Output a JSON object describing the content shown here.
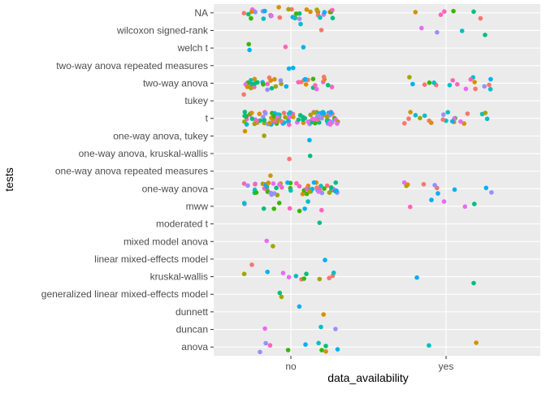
{
  "chart_data": {
    "type": "scatter",
    "title": "",
    "xlabel": "data_availability",
    "ylabel": "tests",
    "x_categories": [
      "no",
      "yes"
    ],
    "y_categories": [
      "anova",
      "duncan",
      "dunnett",
      "generalized linear mixed-effects model",
      "kruskal-wallis",
      "linear mixed-effects model",
      "mixed model anova",
      "moderated t",
      "mww",
      "one-way anova",
      "one-way anova repeated measures",
      "one-way anova, kruskal-wallis",
      "one-way anova, tukey",
      "t",
      "tukey",
      "two-way anova",
      "two-way anova repeated measures",
      "welch t",
      "wilcoxon signed-rank",
      "NA"
    ],
    "jitter": true,
    "grid": true,
    "legend": "none",
    "point_colors": [
      "#f8766d",
      "#d89000",
      "#a3a500",
      "#39b600",
      "#00bf7d",
      "#00bfc4",
      "#00b0f6",
      "#9590ff",
      "#e76bf3",
      "#ff62bc"
    ],
    "panel_background": "#ebebeb",
    "point_counts": [
      {
        "test": "anova",
        "no": 10,
        "yes": 2
      },
      {
        "test": "duncan",
        "no": 3,
        "yes": 0
      },
      {
        "test": "dunnett",
        "no": 2,
        "yes": 0
      },
      {
        "test": "generalized linear mixed-effects model",
        "no": 2,
        "yes": 0
      },
      {
        "test": "kruskal-wallis",
        "no": 12,
        "yes": 2
      },
      {
        "test": "linear mixed-effects model",
        "no": 2,
        "yes": 0
      },
      {
        "test": "mixed model anova",
        "no": 2,
        "yes": 0
      },
      {
        "test": "moderated t",
        "no": 1,
        "yes": 0
      },
      {
        "test": "mww",
        "no": 10,
        "yes": 5
      },
      {
        "test": "one-way anova",
        "no": 60,
        "yes": 10
      },
      {
        "test": "one-way anova repeated measures",
        "no": 1,
        "yes": 0
      },
      {
        "test": "one-way anova, kruskal-wallis",
        "no": 2,
        "yes": 0
      },
      {
        "test": "one-way anova, tukey",
        "no": 3,
        "yes": 0
      },
      {
        "test": "t",
        "no": 110,
        "yes": 22
      },
      {
        "test": "tukey",
        "no": 1,
        "yes": 0
      },
      {
        "test": "two-way anova",
        "no": 38,
        "yes": 18
      },
      {
        "test": "two-way anova repeated measures",
        "no": 2,
        "yes": 0
      },
      {
        "test": "welch t",
        "no": 4,
        "yes": 0
      },
      {
        "test": "wilcoxon signed-rank",
        "no": 2,
        "yes": 4
      },
      {
        "test": "NA",
        "no": 38,
        "yes": 6
      }
    ]
  }
}
